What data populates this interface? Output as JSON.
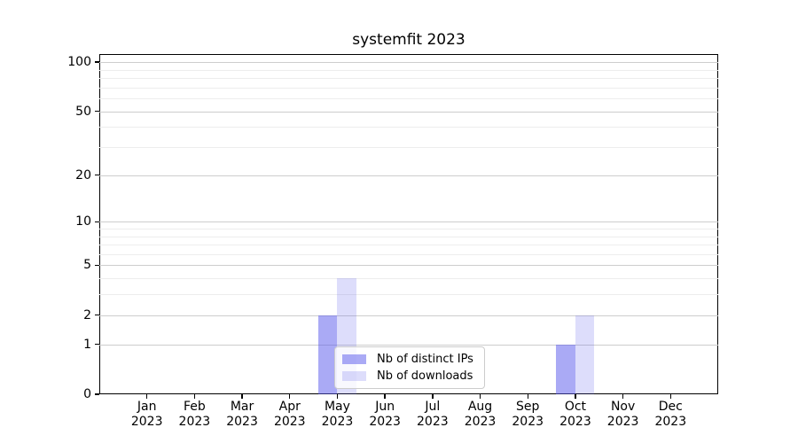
{
  "figure": {
    "background": "#ffffff"
  },
  "chart_data": {
    "type": "bar",
    "title": "systemfit 2023",
    "categories": [
      "Jan 2023",
      "Feb 2023",
      "Mar 2023",
      "Apr 2023",
      "May 2023",
      "Jun 2023",
      "Jul 2023",
      "Aug 2023",
      "Sep 2023",
      "Oct 2023",
      "Nov 2023",
      "Dec 2023"
    ],
    "series": [
      {
        "name": "Nb of distinct IPs",
        "color": "rgba(85,85,235,0.5)",
        "values": [
          0,
          0,
          0,
          0,
          2,
          0,
          0,
          0,
          0,
          1,
          0,
          0
        ]
      },
      {
        "name": "Nb of downloads",
        "color": "rgba(85,85,235,0.2)",
        "values": [
          0,
          0,
          0,
          0,
          4,
          0,
          0,
          0,
          0,
          2,
          0,
          0
        ]
      }
    ],
    "xlabel": "",
    "ylabel": "",
    "yscale": "log1p",
    "y_ticks": [
      0,
      1,
      2,
      5,
      10,
      20,
      50,
      100
    ],
    "y_minor_ticks": [
      3,
      4,
      6,
      7,
      8,
      9,
      30,
      40,
      60,
      70,
      80,
      90
    ],
    "ylim": [
      0,
      112
    ],
    "grid": true,
    "legend_position": "lower center inside",
    "colors": {
      "grid_major": "#cdcdcd",
      "grid_minor": "#ededed",
      "axis": "#000000",
      "legend_border": "#cccccc",
      "legend_background": "rgba(255,255,255,0.8)",
      "text": "#000000"
    }
  }
}
